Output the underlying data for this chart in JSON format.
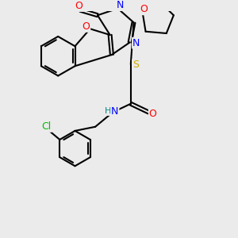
{
  "bg_color": "#ebebeb",
  "atom_colors": {
    "O": "#ff0000",
    "N": "#0000ff",
    "S": "#ccaa00",
    "Cl": "#00bb00",
    "C": "#000000",
    "H": "#008888"
  },
  "bond_color": "#000000",
  "bond_width": 1.5,
  "font_size": 9,
  "fig_size": [
    3.0,
    3.0
  ],
  "dpi": 100
}
